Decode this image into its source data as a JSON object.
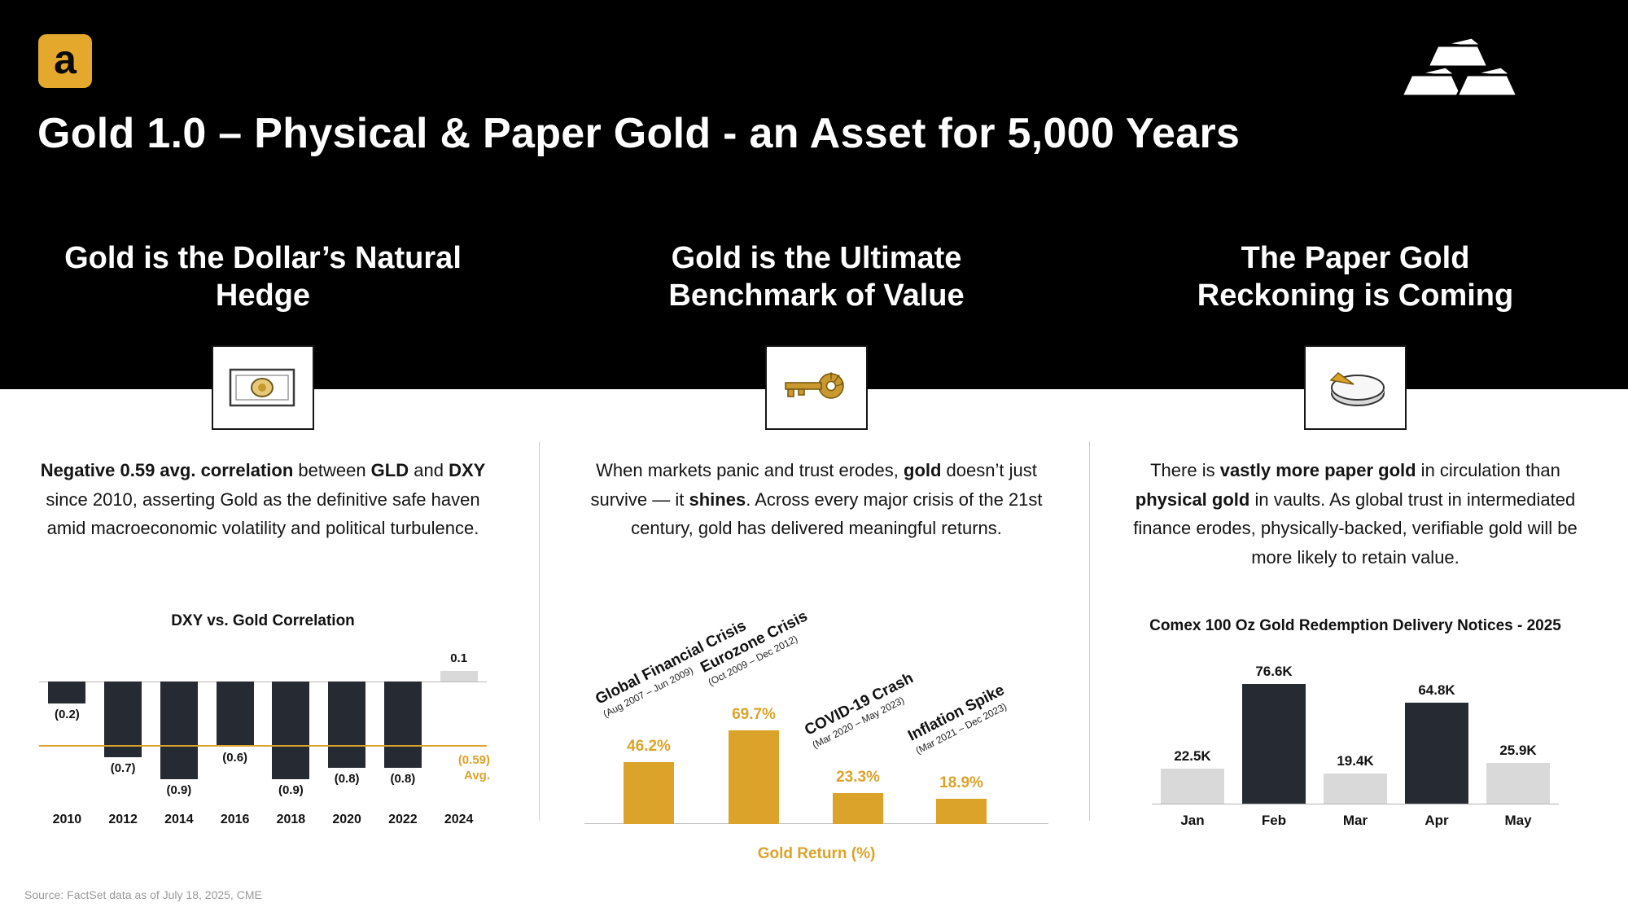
{
  "header": {
    "logo_letter": "a",
    "title": "Gold 1.0 – Physical & Paper Gold - an Asset for 5,000 Years"
  },
  "columns": [
    {
      "heading_line1": "Gold is the Dollar’s Natural",
      "heading_line2": "Hedge",
      "icon": "dollar-bill-icon",
      "paragraph": [
        {
          "t": "Negative 0.59 avg. correlation",
          "b": true
        },
        {
          "t": " between ",
          "b": false
        },
        {
          "t": "GLD",
          "b": true
        },
        {
          "t": " and ",
          "b": false
        },
        {
          "t": "DXY",
          "b": true
        },
        {
          "t": " since 2010, asserting Gold as the definitive safe haven amid macroeconomic volatility and political turbulence.",
          "b": false
        }
      ]
    },
    {
      "heading_line1": "Gold is the Ultimate",
      "heading_line2": "Benchmark of Value",
      "icon": "gold-key-icon",
      "paragraph": [
        {
          "t": "When markets panic and trust erodes, ",
          "b": false
        },
        {
          "t": "gold",
          "b": true
        },
        {
          "t": " doesn’t just survive — it ",
          "b": false
        },
        {
          "t": "shines",
          "b": true
        },
        {
          "t": ". Across every major crisis of the 21st century, gold has delivered meaningful returns.",
          "b": false
        }
      ]
    },
    {
      "heading_line1": "The Paper Gold",
      "heading_line2": "Reckoning is Coming",
      "icon": "pie-chart-icon",
      "paragraph": [
        {
          "t": "There is ",
          "b": false
        },
        {
          "t": "vastly more paper gold",
          "b": true
        },
        {
          "t": " in circulation than ",
          "b": false
        },
        {
          "t": "physical gold",
          "b": true
        },
        {
          "t": " in vaults. As global trust in intermediated finance erodes, physically-backed, verifiable gold will be more likely to retain value.",
          "b": false
        }
      ]
    }
  ],
  "chart_data": [
    {
      "type": "bar",
      "title": "DXY vs. Gold Correlation",
      "categories": [
        "2010",
        "2012",
        "2014",
        "2016",
        "2018",
        "2020",
        "2022",
        "2024"
      ],
      "values": [
        -0.2,
        -0.7,
        -0.9,
        -0.6,
        -0.9,
        -0.8,
        -0.8,
        0.1
      ],
      "value_labels": [
        "(0.2)",
        "(0.7)",
        "(0.9)",
        "(0.6)",
        "(0.9)",
        "(0.8)",
        "(0.8)",
        "0.1"
      ],
      "bar_colors": [
        "dark",
        "dark",
        "dark",
        "dark",
        "dark",
        "dark",
        "dark",
        "light"
      ],
      "average_line": {
        "value": -0.59,
        "label": "(0.59) Avg."
      },
      "ylim": [
        -1.0,
        0.2
      ],
      "grid": false,
      "legend": false
    },
    {
      "type": "bar",
      "title": "",
      "xlabel": "Gold Return (%)",
      "categories": [
        "Global Financial Crisis",
        "Eurozone Crisis",
        "COVID-19 Crash",
        "Inflation Spike"
      ],
      "category_sublabels": [
        "(Aug 2007 – Jun 2009)",
        "(Oct 2009 – Dec 2012)",
        "(Mar 2020 – May 2023)",
        "(Mar 2021 – Dec 2023)"
      ],
      "values": [
        46.2,
        69.7,
        23.3,
        18.9
      ],
      "value_labels": [
        "46.2%",
        "69.7%",
        "23.3%",
        "18.9%"
      ],
      "bar_color": "gold",
      "ylim": [
        0,
        80
      ],
      "grid": false,
      "legend": false
    },
    {
      "type": "bar",
      "title": "Comex 100 Oz Gold Redemption Delivery Notices - 2025",
      "categories": [
        "Jan",
        "Feb",
        "Mar",
        "Apr",
        "May"
      ],
      "values": [
        22.5,
        76.6,
        19.4,
        64.8,
        25.9
      ],
      "unit": "K",
      "value_labels": [
        "22.5K",
        "76.6K",
        "19.4K",
        "64.8K",
        "25.9K"
      ],
      "bar_colors": [
        "light",
        "dark",
        "light",
        "dark",
        "light"
      ],
      "ylim": [
        0,
        85
      ],
      "grid": false,
      "legend": false
    }
  ],
  "colors": {
    "background_black": "#000000",
    "gold": "#DCA32B",
    "logo_gold": "#E4A82D",
    "dark_bar": "#262A33",
    "light_bar": "#D9D9D9"
  },
  "source_note": "Source: FactSet data as of July 18, 2025, CME"
}
